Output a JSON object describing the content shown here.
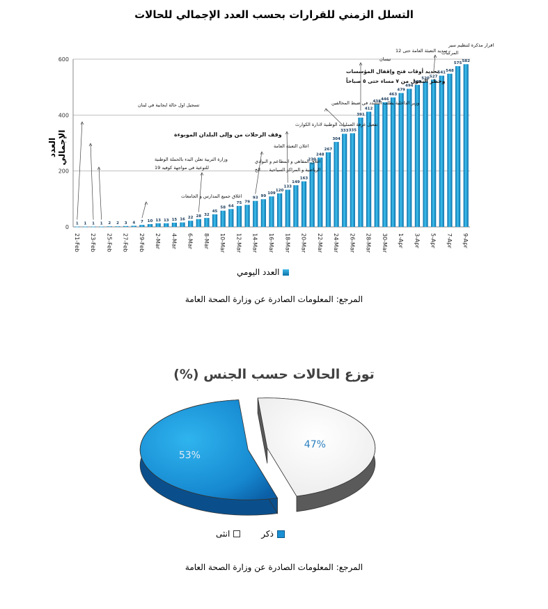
{
  "chart_data": [
    {
      "type": "bar",
      "title": "التسلل الزمني للقرارات بحسب العدد الإجمالي للحالات",
      "ylabel": "العدد الإجمالي",
      "xlabel": "",
      "ylim": [
        0,
        600
      ],
      "yticks": [
        0,
        200,
        400,
        600
      ],
      "grid": true,
      "legend": "bottom",
      "series": [
        {
          "name": "العدد اليومي",
          "values": [
            1,
            1,
            1,
            1,
            2,
            2,
            3,
            4,
            7,
            10,
            13,
            13,
            15,
            16,
            22,
            28,
            32,
            45,
            58,
            64,
            75,
            79,
            93,
            99,
            109,
            120,
            133,
            149,
            163,
            230,
            248,
            267,
            304,
            333,
            335,
            391,
            412,
            438,
            446,
            463,
            479,
            494,
            508,
            520,
            527,
            541,
            548,
            575,
            582
          ]
        }
      ],
      "xtick_labels": [
        "21-Feb",
        "23-Feb",
        "25-Feb",
        "27-Feb",
        "29-Feb",
        "2-Mar",
        "4-Mar",
        "6-Mar",
        "8-Mar",
        "10-Mar",
        "12-Mar",
        "14-Mar",
        "16-Mar",
        "18-Mar",
        "20-Mar",
        "22-Mar",
        "24-Mar",
        "26-Mar",
        "28-Mar",
        "30-Mar",
        "1-Apr",
        "3-Apr",
        "5-Apr",
        "7-Apr",
        "9-Apr"
      ],
      "annotations": [
        {
          "text": "تسجيل اول حالة ايجابية في لبنان",
          "bar_index": 0,
          "bold": false
        },
        {
          "text": "وقف الرحلات من وإلى البلدان الموبوءة",
          "bar_index": 2,
          "bold": true
        },
        {
          "text": "وزارة التربية تعلن البدء بالحملة الوطنية",
          "bar_index": 3,
          "bold": false
        },
        {
          "text": "للتوعية في مواجهة كوفيد 19",
          "bar_index": 3,
          "bold": false
        },
        {
          "text": "اغلاق جميع المدارس و الجامعات",
          "bar_index": 8,
          "bold": false
        },
        {
          "text": "اغلاق المقاهي و المطاعم و النوادي",
          "bar_index": 15,
          "bold": false
        },
        {
          "text": "الرياضية و المراكز السياحية .....الخ",
          "bar_index": 15,
          "bold": false
        },
        {
          "text": "اعلان التعبئة العامة",
          "bar_index": 22,
          "bold": false
        },
        {
          "text": "تفعيل غرفة العمليات الوطنية لادارة الكوارث",
          "bar_index": 26,
          "bold": false
        },
        {
          "text": "وزير الداخلية يطلب التشدد في ضبط المخالفين",
          "bar_index": 33,
          "bold": false
        },
        {
          "text": "تحديد أوقات فتح وإقفال المؤسسات",
          "bar_index": 33,
          "bold": true
        },
        {
          "text": "وحظر التجول من ٧ مساء حتى ٥ صباحاً",
          "bar_index": 33,
          "bold": true
        },
        {
          "text": "تمديد التعبئة العامة حتى 12",
          "bar_index": 35,
          "bold": false
        },
        {
          "text": "نيسان",
          "bar_index": 35,
          "bold": false
        },
        {
          "text": "اقرار مذكرة لتنظيم سير",
          "bar_index": 44,
          "bold": false
        },
        {
          "text": "المركبات",
          "bar_index": 44,
          "bold": false
        }
      ]
    },
    {
      "type": "pie",
      "title": "توزع الحالات حسب الجنس (%)",
      "series": [
        {
          "name": "ذكر",
          "value": 53,
          "label": "53%",
          "color": "#1a8fd3"
        },
        {
          "name": "انثى",
          "value": 47,
          "label": "47%",
          "color": "#ffffff"
        }
      ],
      "legend": "bottom"
    }
  ],
  "source_text": "المرجع: المعلومات الصادرة عن وزارة الصحة العامة",
  "colors": {
    "bar": "#1b9ad6",
    "grid": "#bfbfbf",
    "pie_side": "#555555"
  }
}
